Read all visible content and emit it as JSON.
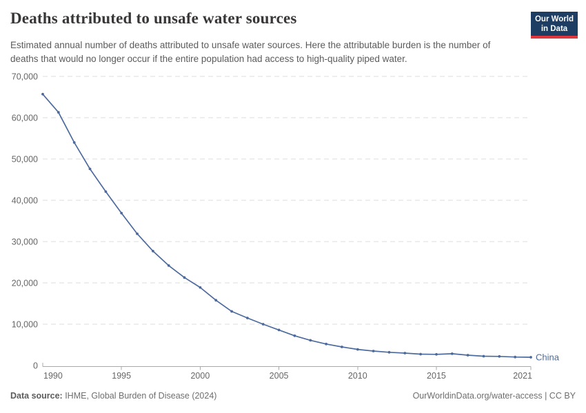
{
  "header": {
    "title": "Deaths attributed to unsafe water sources",
    "subtitle": "Estimated annual number of deaths attributed to unsafe water sources. Here the attributable burden is the number of deaths that would no longer occur if the entire population had access to high-quality piped water.",
    "logo": {
      "line1": "Our World",
      "line2": "in Data",
      "bg_color": "#1d3d63",
      "accent_color": "#e0373f"
    }
  },
  "chart_data": {
    "type": "line",
    "title": "Deaths attributed to unsafe water sources",
    "xlabel": "",
    "ylabel": "",
    "xlim": [
      1990,
      2021
    ],
    "ylim": [
      0,
      70000
    ],
    "x_ticks": [
      1990,
      1995,
      2000,
      2005,
      2010,
      2015,
      2021
    ],
    "y_ticks": [
      0,
      10000,
      20000,
      30000,
      40000,
      50000,
      60000,
      70000
    ],
    "grid": "horizontal-dashed",
    "legend_position": "line-end-label",
    "x": [
      1990,
      1991,
      1992,
      1993,
      1994,
      1995,
      1996,
      1997,
      1998,
      1999,
      2000,
      2001,
      2002,
      2003,
      2004,
      2005,
      2006,
      2007,
      2008,
      2009,
      2010,
      2011,
      2012,
      2013,
      2014,
      2015,
      2016,
      2017,
      2018,
      2019,
      2020,
      2021
    ],
    "series": [
      {
        "name": "China",
        "color": "#4c6a9c",
        "values": [
          65700,
          61300,
          54000,
          47600,
          42100,
          36900,
          31900,
          27700,
          24200,
          21300,
          18900,
          15800,
          13100,
          11500,
          10000,
          8600,
          7200,
          6100,
          5200,
          4500,
          3900,
          3500,
          3200,
          3000,
          2750,
          2700,
          2850,
          2500,
          2250,
          2200,
          2050,
          2000
        ]
      }
    ],
    "style": {
      "gridline_color": "#dedede",
      "axis_color": "#a8a8a8",
      "tick_label_color": "#666666"
    }
  },
  "footer": {
    "source_label": "Data source:",
    "source_text": " IHME, Global Burden of Disease (2024)",
    "credit": "OurWorldinData.org/water-access | CC BY"
  }
}
